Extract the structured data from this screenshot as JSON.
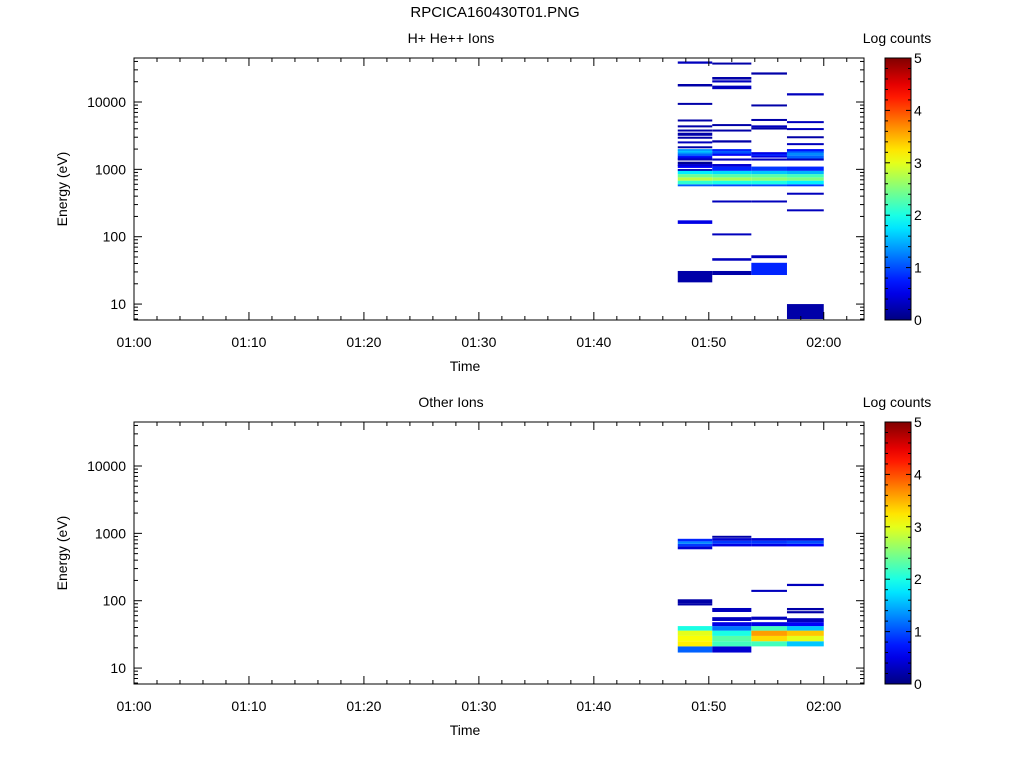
{
  "figure_title": "RPCICA160430T01.PNG",
  "chart_data": [
    {
      "type": "heatmap",
      "title": "H+ He++ Ions",
      "xlabel": "Time",
      "ylabel": "Energy (eV)",
      "x_ticks": [
        "01:00",
        "01:10",
        "01:20",
        "01:30",
        "01:40",
        "01:50",
        "02:00"
      ],
      "xlim_minutes": [
        0,
        63.5
      ],
      "y_scale": "log",
      "ylim": [
        5.8,
        45000
      ],
      "y_ticks": [
        10,
        100,
        1000,
        10000
      ],
      "colorbar": {
        "label": "Log counts",
        "min": 0,
        "max": 5,
        "ticks": [
          0,
          1,
          2,
          3,
          4,
          5
        ]
      },
      "columns": [
        {
          "t_start": 47.3,
          "t_end": 50.3,
          "cells": [
            [
              21,
              31,
              0.2
            ],
            [
              155,
              175,
              0.5
            ],
            [
              960,
              1010,
              0.3
            ],
            [
              1200,
              1300,
              0.1
            ],
            [
              1360,
              1450,
              0.2
            ],
            [
              1500,
              1600,
              0.7
            ],
            [
              1600,
              1700,
              1.1
            ],
            [
              1700,
              1800,
              1.3
            ],
            [
              1800,
              1900,
              1.6
            ],
            [
              1900,
              2000,
              1.4
            ],
            [
              2450,
              2600,
              0.3
            ],
            [
              2900,
              3050,
              0.2
            ],
            [
              3150,
              3500,
              0.2
            ],
            [
              4200,
              4500,
              0.2
            ],
            [
              5200,
              5500,
              0.2
            ],
            [
              9200,
              9700,
              0.2
            ],
            [
              17000,
              18500,
              0.2
            ],
            [
              37000,
              40000,
              0.3
            ],
            [
              560,
              600,
              1.1
            ],
            [
              600,
              680,
              2.1
            ],
            [
              680,
              760,
              2.8
            ],
            [
              760,
              850,
              2.4
            ],
            [
              850,
              950,
              1.8
            ],
            [
              1050,
              1150,
              0.6
            ],
            [
              1150,
              1200,
              0.4
            ],
            [
              1450,
              1500,
              0.4
            ],
            [
              2100,
              2200,
              0.2
            ],
            [
              3700,
              3900,
              0.2
            ]
          ]
        },
        {
          "t_start": 50.3,
          "t_end": 53.7,
          "cells": [
            [
              27,
              31,
              0.2
            ],
            [
              44,
              48,
              0.3
            ],
            [
              105,
              112,
              0.3
            ],
            [
              325,
              345,
              0.3
            ],
            [
              560,
              600,
              1.0
            ],
            [
              600,
              680,
              2.0
            ],
            [
              680,
              760,
              2.7
            ],
            [
              760,
              850,
              2.3
            ],
            [
              850,
              950,
              1.7
            ],
            [
              950,
              1100,
              0.8
            ],
            [
              1100,
              1200,
              0.4
            ],
            [
              1350,
              1450,
              0.3
            ],
            [
              1600,
              1700,
              0.6
            ],
            [
              1700,
              1800,
              0.9
            ],
            [
              1800,
              1900,
              1.1
            ],
            [
              1900,
              2000,
              0.8
            ],
            [
              2500,
              2700,
              0.2
            ],
            [
              3700,
              3900,
              0.2
            ],
            [
              4400,
              4700,
              0.2
            ],
            [
              15500,
              17500,
              0.3
            ],
            [
              19500,
              21000,
              0.3
            ],
            [
              21500,
              23500,
              0.2
            ],
            [
              36000,
              38500,
              0.2
            ]
          ]
        },
        {
          "t_start": 53.7,
          "t_end": 56.8,
          "cells": [
            [
              27,
              41,
              0.8
            ],
            [
              48,
              53,
              0.3
            ],
            [
              325,
              345,
              0.3
            ],
            [
              560,
              600,
              1.0
            ],
            [
              600,
              680,
              2.0
            ],
            [
              680,
              760,
              2.6
            ],
            [
              760,
              850,
              2.3
            ],
            [
              850,
              950,
              1.6
            ],
            [
              950,
              1100,
              0.9
            ],
            [
              1350,
              1450,
              0.3
            ],
            [
              1500,
              1600,
              0.5
            ],
            [
              1600,
              1700,
              0.8
            ],
            [
              1700,
              1800,
              0.5
            ],
            [
              3900,
              4200,
              0.2
            ],
            [
              4200,
              4500,
              0.3
            ],
            [
              5300,
              5600,
              0.2
            ],
            [
              8700,
              9200,
              0.2
            ],
            [
              25500,
              27500,
              0.2
            ]
          ]
        },
        {
          "t_start": 56.8,
          "t_end": 60.0,
          "cells": [
            [
              6,
              10,
              0.2
            ],
            [
              240,
              255,
              0.3
            ],
            [
              420,
              450,
              0.3
            ],
            [
              560,
              600,
              0.9
            ],
            [
              600,
              680,
              1.8
            ],
            [
              680,
              760,
              2.5
            ],
            [
              760,
              850,
              2.2
            ],
            [
              850,
              950,
              1.5
            ],
            [
              950,
              1100,
              0.8
            ],
            [
              1350,
              1450,
              0.3
            ],
            [
              1450,
              1600,
              1.1
            ],
            [
              1600,
              1800,
              1.3
            ],
            [
              1800,
              1900,
              1.0
            ],
            [
              1900,
              2000,
              0.7
            ],
            [
              2300,
              2450,
              0.3
            ],
            [
              2900,
              3100,
              0.2
            ],
            [
              3900,
              4100,
              0.3
            ],
            [
              4900,
              5200,
              0.3
            ],
            [
              12500,
              13500,
              0.3
            ]
          ]
        }
      ]
    },
    {
      "type": "heatmap",
      "title": "Other Ions",
      "xlabel": "Time",
      "ylabel": "Energy (eV)",
      "x_ticks": [
        "01:00",
        "01:10",
        "01:20",
        "01:30",
        "01:40",
        "01:50",
        "02:00"
      ],
      "xlim_minutes": [
        0,
        63.5
      ],
      "y_scale": "log",
      "ylim": [
        5.8,
        45000
      ],
      "y_ticks": [
        10,
        100,
        1000,
        10000
      ],
      "colorbar": {
        "label": "Log counts",
        "min": 0,
        "max": 5,
        "ticks": [
          0,
          1,
          2,
          3,
          4,
          5
        ]
      },
      "columns": [
        {
          "t_start": 47.3,
          "t_end": 50.3,
          "cells": [
            [
              17,
              21,
              1.1
            ],
            [
              21,
              25,
              3.2
            ],
            [
              25,
              30,
              3.1
            ],
            [
              30,
              36,
              3.0
            ],
            [
              36,
              42,
              2.0
            ],
            [
              85,
              92,
              0.2
            ],
            [
              92,
              105,
              0.2
            ],
            [
              580,
              640,
              0.4
            ],
            [
              640,
              700,
              0.9
            ],
            [
              700,
              760,
              1.3
            ],
            [
              760,
              830,
              0.8
            ]
          ]
        },
        {
          "t_start": 50.3,
          "t_end": 53.7,
          "cells": [
            [
              17,
              21,
              0.4
            ],
            [
              21,
              25,
              2.2
            ],
            [
              25,
              30,
              2.3
            ],
            [
              30,
              36,
              2.0
            ],
            [
              36,
              42,
              1.2
            ],
            [
              42,
              48,
              0.5
            ],
            [
              50,
              57,
              0.3
            ],
            [
              68,
              78,
              0.3
            ],
            [
              640,
              700,
              0.5
            ],
            [
              700,
              780,
              0.9
            ],
            [
              780,
              850,
              0.4
            ],
            [
              870,
              920,
              0.2
            ]
          ]
        },
        {
          "t_start": 53.7,
          "t_end": 56.8,
          "cells": [
            [
              21,
              25,
              2.2
            ],
            [
              25,
              30,
              3.3
            ],
            [
              30,
              36,
              3.6
            ],
            [
              36,
              42,
              2.2
            ],
            [
              42,
              48,
              0.5
            ],
            [
              52,
              58,
              0.3
            ],
            [
              135,
              145,
              0.3
            ],
            [
              640,
              700,
              0.5
            ],
            [
              700,
              780,
              0.9
            ],
            [
              780,
              850,
              0.4
            ]
          ]
        },
        {
          "t_start": 56.8,
          "t_end": 60.0,
          "cells": [
            [
              21,
              25,
              1.6
            ],
            [
              25,
              30,
              3.0
            ],
            [
              30,
              36,
              3.4
            ],
            [
              36,
              42,
              1.6
            ],
            [
              42,
              48,
              0.6
            ],
            [
              48,
              55,
              0.3
            ],
            [
              65,
              70,
              0.2
            ],
            [
              72,
              78,
              0.2
            ],
            [
              165,
              178,
              0.3
            ],
            [
              640,
              700,
              0.6
            ],
            [
              700,
              780,
              1.0
            ],
            [
              780,
              850,
              0.4
            ]
          ]
        }
      ]
    }
  ]
}
